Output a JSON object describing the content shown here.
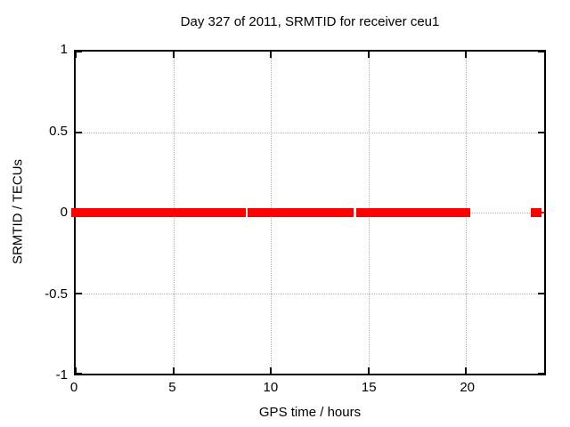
{
  "page": {
    "background": "#ffffff"
  },
  "chart_data": {
    "type": "line",
    "title": "Day 327 of 2011, SRMTID for receiver ceu1",
    "xlabel": "GPS time / hours",
    "ylabel": "SRMTID / TECUs",
    "xlim": [
      0,
      24
    ],
    "ylim": [
      -1,
      1
    ],
    "xticks": [
      {
        "value": 0,
        "label": "0"
      },
      {
        "value": 5,
        "label": "5"
      },
      {
        "value": 10,
        "label": "10"
      },
      {
        "value": 15,
        "label": "15"
      },
      {
        "value": 20,
        "label": "20"
      }
    ],
    "yticks": [
      {
        "value": 1,
        "label": "1"
      },
      {
        "value": 0.5,
        "label": "0.5"
      },
      {
        "value": 0,
        "label": "0"
      },
      {
        "value": -0.5,
        "label": "-0.5"
      },
      {
        "value": -1,
        "label": "-1"
      }
    ],
    "grid": {
      "shown": true,
      "style": "dotted",
      "color": "#b0b0b0"
    },
    "legend": {
      "shown": false
    },
    "series": [
      {
        "name": "SRMTID",
        "color": "#ff0000",
        "marker": "filled-square",
        "y_value": 0,
        "band_thickness_px": 10,
        "segments_hours": [
          [
            0,
            8.7
          ],
          [
            8.8,
            14.25
          ],
          [
            14.35,
            20.2
          ],
          [
            23.3,
            23.85
          ]
        ],
        "connector_line_hours": [
          23.3,
          24.0
        ],
        "description": "SRMTID constant at 0 TECUs; dense square markers form a solid band from 0 to ~20.2 h with tiny gaps near 8.75 h and 14.3 h, plus a short isolated cluster near 23.3-23.9 h"
      }
    ],
    "colors": {
      "border": "#000000",
      "background": "#ffffff",
      "text": "#000000"
    }
  }
}
